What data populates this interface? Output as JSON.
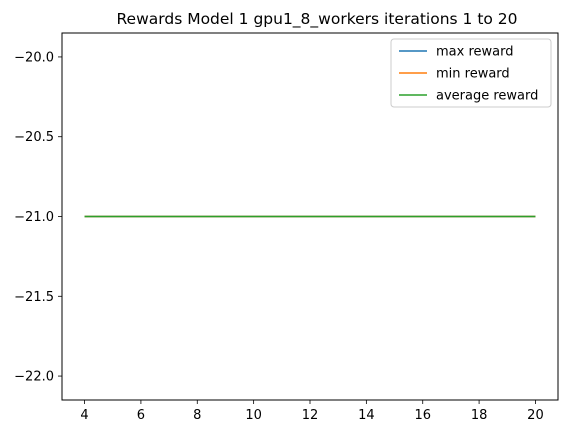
{
  "chart_data": {
    "type": "line",
    "title": "Rewards Model 1 gpu1_8_workers iterations 1 to 20",
    "xlabel": "",
    "ylabel": "",
    "xlim": [
      3.2,
      20.8
    ],
    "ylim": [
      -22.15,
      -19.85
    ],
    "xticks": [
      4,
      6,
      8,
      10,
      12,
      14,
      16,
      18,
      20
    ],
    "yticks": [
      -20.0,
      -20.5,
      -21.0,
      -21.5,
      -22.0
    ],
    "ytick_labels": [
      "−20.0",
      "−20.5",
      "−21.0",
      "−21.5",
      "−22.0"
    ],
    "x": [
      4,
      5,
      6,
      7,
      8,
      9,
      10,
      11,
      12,
      13,
      14,
      15,
      16,
      17,
      18,
      19,
      20
    ],
    "series": [
      {
        "name": "max reward",
        "color": "#1f77b4",
        "values": [
          -21,
          -21,
          -21,
          -21,
          -21,
          -21,
          -21,
          -21,
          -21,
          -21,
          -21,
          -21,
          -21,
          -21,
          -21,
          -21,
          -21
        ]
      },
      {
        "name": "min reward",
        "color": "#ff7f0e",
        "values": [
          -21,
          -21,
          -21,
          -21,
          -21,
          -21,
          -21,
          -21,
          -21,
          -21,
          -21,
          -21,
          -21,
          -21,
          -21,
          -21,
          -21
        ]
      },
      {
        "name": "average reward",
        "color": "#2ca02c",
        "values": [
          -21,
          -21,
          -21,
          -21,
          -21,
          -21,
          -21,
          -21,
          -21,
          -21,
          -21,
          -21,
          -21,
          -21,
          -21,
          -21,
          -21
        ]
      }
    ],
    "grid": false,
    "legend_position": "top-right"
  }
}
